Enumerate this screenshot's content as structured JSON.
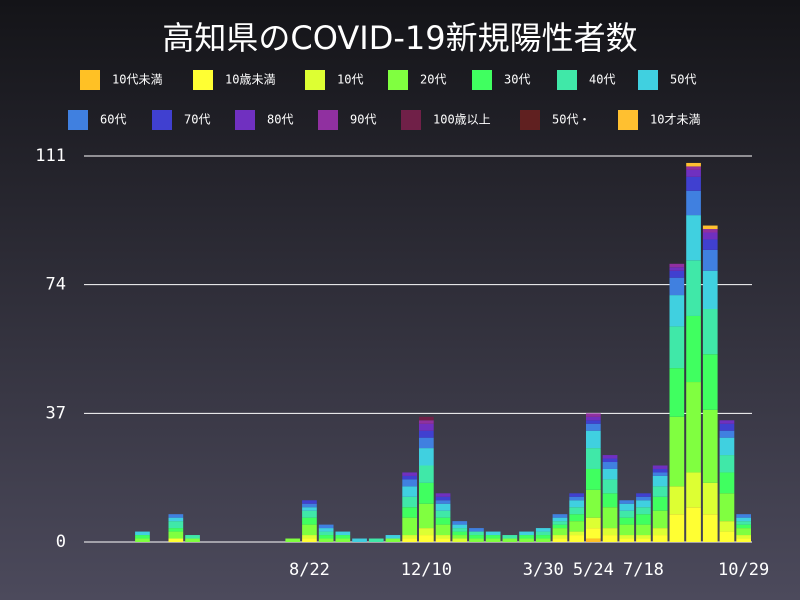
{
  "chart_data": {
    "type": "bar",
    "stacked": true,
    "title": "高知県のCOVID-19新規陽性者数",
    "categories": [
      null,
      null,
      null,
      null,
      null,
      null,
      null,
      null,
      null,
      null,
      null,
      null,
      null,
      "8/22",
      null,
      null,
      null,
      null,
      null,
      null,
      "12/10",
      null,
      null,
      null,
      null,
      null,
      null,
      "3/30",
      null,
      null,
      "5/24",
      null,
      null,
      "7/18",
      null,
      null,
      null,
      null,
      null,
      "10/29"
    ],
    "series": [
      {
        "name": "10代未満",
        "color": "#ffc125",
        "values": [
          0,
          0,
          0,
          0,
          0,
          0,
          0,
          0,
          0,
          0,
          0,
          0,
          0,
          0,
          0,
          0,
          0,
          0,
          0,
          0,
          0,
          0,
          0,
          0,
          0,
          0,
          0,
          0,
          0,
          0,
          1,
          0,
          0,
          0,
          0,
          0,
          0,
          0,
          0,
          0
        ]
      },
      {
        "name": "10歳未満",
        "color": "#ffff33",
        "values": [
          0,
          0,
          0,
          0,
          0,
          1,
          0,
          0,
          0,
          0,
          0,
          0,
          0,
          1,
          0,
          0,
          0,
          0,
          0,
          1,
          2,
          1,
          0,
          0,
          0,
          0,
          0,
          0,
          1,
          2,
          3,
          2,
          1,
          1,
          2,
          8,
          10,
          8,
          3,
          1
        ]
      },
      {
        "name": "10代",
        "color": "#ddff33",
        "values": [
          0,
          0,
          0,
          0,
          0,
          0,
          0,
          0,
          0,
          0,
          0,
          0,
          0,
          1,
          0,
          0,
          0,
          0,
          0,
          1,
          2,
          1,
          1,
          0,
          0,
          0,
          0,
          0,
          1,
          1,
          3,
          2,
          1,
          1,
          2,
          8,
          10,
          9,
          3,
          1
        ]
      },
      {
        "name": "20代",
        "color": "#80ff40",
        "values": [
          0,
          0,
          0,
          1,
          0,
          2,
          1,
          0,
          0,
          0,
          0,
          0,
          1,
          3,
          1,
          1,
          0,
          0,
          1,
          5,
          7,
          3,
          1,
          1,
          1,
          1,
          1,
          1,
          2,
          3,
          8,
          6,
          3,
          3,
          5,
          20,
          26,
          21,
          8,
          2
        ]
      },
      {
        "name": "30代",
        "color": "#40ff60",
        "values": [
          0,
          0,
          0,
          1,
          0,
          1,
          0,
          0,
          0,
          0,
          0,
          0,
          0,
          2,
          1,
          1,
          0,
          0,
          0,
          3,
          6,
          2,
          1,
          1,
          1,
          0,
          1,
          1,
          1,
          2,
          6,
          4,
          2,
          3,
          4,
          14,
          19,
          16,
          6,
          1
        ]
      },
      {
        "name": "40代",
        "color": "#40e8a8",
        "values": [
          0,
          0,
          0,
          0,
          0,
          2,
          1,
          0,
          0,
          0,
          0,
          0,
          0,
          2,
          1,
          0,
          0,
          1,
          0,
          3,
          5,
          2,
          1,
          1,
          0,
          1,
          0,
          1,
          1,
          2,
          6,
          4,
          2,
          2,
          3,
          12,
          16,
          13,
          5,
          1
        ]
      },
      {
        "name": "50代",
        "color": "#40d0e0",
        "values": [
          0,
          0,
          0,
          1,
          0,
          1,
          0,
          0,
          0,
          0,
          0,
          0,
          0,
          1,
          1,
          1,
          1,
          0,
          1,
          3,
          5,
          2,
          1,
          0,
          1,
          0,
          1,
          1,
          1,
          2,
          5,
          3,
          2,
          2,
          3,
          9,
          13,
          11,
          5,
          1
        ]
      },
      {
        "name": "60代",
        "color": "#4080e0",
        "values": [
          0,
          0,
          0,
          0,
          0,
          1,
          0,
          0,
          0,
          0,
          0,
          0,
          0,
          1,
          1,
          0,
          0,
          0,
          0,
          2,
          3,
          1,
          1,
          1,
          0,
          0,
          0,
          0,
          1,
          1,
          2,
          2,
          1,
          1,
          1,
          5,
          7,
          6,
          2,
          1
        ]
      },
      {
        "name": "70代",
        "color": "#4040d0",
        "values": [
          0,
          0,
          0,
          0,
          0,
          0,
          0,
          0,
          0,
          0,
          0,
          0,
          0,
          1,
          0,
          0,
          0,
          0,
          0,
          1,
          2,
          1,
          0,
          0,
          0,
          0,
          0,
          0,
          0,
          1,
          1,
          1,
          0,
          1,
          1,
          2,
          4,
          3,
          2,
          0
        ]
      },
      {
        "name": "80代",
        "color": "#7030c0",
        "values": [
          0,
          0,
          0,
          0,
          0,
          0,
          0,
          0,
          0,
          0,
          0,
          0,
          0,
          0,
          0,
          0,
          0,
          0,
          0,
          1,
          2,
          1,
          0,
          0,
          0,
          0,
          0,
          0,
          0,
          0,
          1,
          1,
          0,
          0,
          1,
          1,
          2,
          2,
          1,
          0
        ]
      },
      {
        "name": "90代",
        "color": "#9030a0",
        "values": [
          0,
          0,
          0,
          0,
          0,
          0,
          0,
          0,
          0,
          0,
          0,
          0,
          0,
          0,
          0,
          0,
          0,
          0,
          0,
          0,
          1,
          0,
          0,
          0,
          0,
          0,
          0,
          0,
          0,
          0,
          1,
          0,
          0,
          0,
          0,
          1,
          1,
          1,
          0,
          0
        ]
      },
      {
        "name": "100歳以上",
        "color": "#702048",
        "values": [
          0,
          0,
          0,
          0,
          0,
          0,
          0,
          0,
          0,
          0,
          0,
          0,
          0,
          0,
          0,
          0,
          0,
          0,
          0,
          0,
          1,
          0,
          0,
          0,
          0,
          0,
          0,
          0,
          0,
          0,
          0,
          0,
          0,
          0,
          0,
          0,
          0,
          0,
          0,
          0
        ]
      },
      {
        "name": "50代・",
        "color": "#602020",
        "values": [
          0,
          0,
          0,
          0,
          0,
          0,
          0,
          0,
          0,
          0,
          0,
          0,
          0,
          0,
          0,
          0,
          0,
          0,
          0,
          0,
          0,
          0,
          0,
          0,
          0,
          0,
          0,
          0,
          0,
          0,
          0,
          0,
          0,
          0,
          0,
          0,
          0,
          0,
          0,
          0
        ]
      },
      {
        "name": "10才未満",
        "color": "#ffc030",
        "values": [
          0,
          0,
          0,
          0,
          0,
          0,
          0,
          0,
          0,
          0,
          0,
          0,
          0,
          0,
          0,
          0,
          0,
          0,
          0,
          0,
          0,
          0,
          0,
          0,
          0,
          0,
          0,
          0,
          0,
          0,
          0,
          0,
          0,
          0,
          0,
          0,
          1,
          1,
          0,
          0
        ]
      }
    ],
    "ylim": [
      0,
      111
    ],
    "yticks": [
      0,
      37,
      74,
      111
    ],
    "grid": true
  }
}
